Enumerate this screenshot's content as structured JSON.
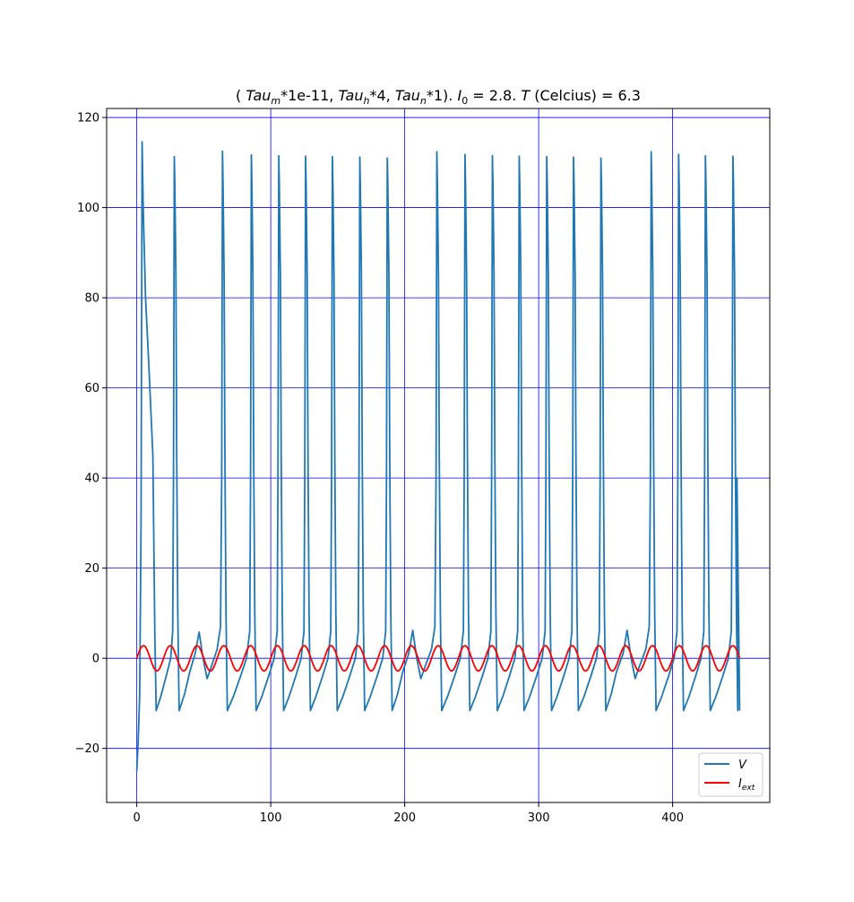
{
  "chart_data": {
    "type": "line",
    "title": {
      "open": "( ",
      "tau_m": "Tau",
      "tau_m_sub": "m",
      "tau_m_mult": "*1e-11, ",
      "tau_h": "Tau",
      "tau_h_sub": "h",
      "tau_h_mult": "*4, ",
      "tau_n": "Tau",
      "tau_n_sub": "n",
      "tau_n_mult": "*1). ",
      "i0": "I",
      "i0_sub": "0",
      "i0_val": " = 2.8. ",
      "temp_sym": "T",
      "temp_rest": " (Celcius) = 6.3"
    },
    "xlabel": "",
    "ylabel": "",
    "xlim": [
      -22.5,
      472.5
    ],
    "ylim": [
      -32,
      122
    ],
    "x_ticks": [
      0,
      100,
      200,
      300,
      400
    ],
    "y_ticks": [
      -20,
      0,
      20,
      40,
      60,
      80,
      100,
      120
    ],
    "grid": true,
    "grid_color": "#0000ff",
    "legend_position": "lower right",
    "series": [
      {
        "name": "V",
        "legend_label": "V",
        "color": "#1f77b4",
        "spike_times": [
          4,
          28,
          64,
          85.5,
          106,
          126,
          146,
          166.5,
          187,
          224,
          245,
          265.5,
          285.5,
          306,
          326,
          346.5,
          384,
          404.5,
          424.5,
          445
        ],
        "spike_peaks": [
          114.6,
          111.3,
          112.5,
          111.7,
          111.5,
          111.4,
          111.3,
          111.2,
          111.0,
          112.4,
          111.8,
          111.5,
          111.4,
          111.3,
          111.2,
          111.0,
          112.4,
          111.8,
          111.5,
          111.4
        ],
        "subthreshold_bumps": [
          {
            "t": 46.5,
            "v": 5.8
          },
          {
            "t": 206,
            "v": 6.2
          },
          {
            "t": 366,
            "v": 6.2
          }
        ],
        "initial_value": -25,
        "trough_value": -11.6,
        "t_end": 450
      },
      {
        "name": "I_ext",
        "legend_label": "I",
        "legend_sub": "ext",
        "color": "#ff0000",
        "amplitude": 2.8,
        "period": 20,
        "t_start": 0,
        "t_end": 450
      }
    ]
  }
}
